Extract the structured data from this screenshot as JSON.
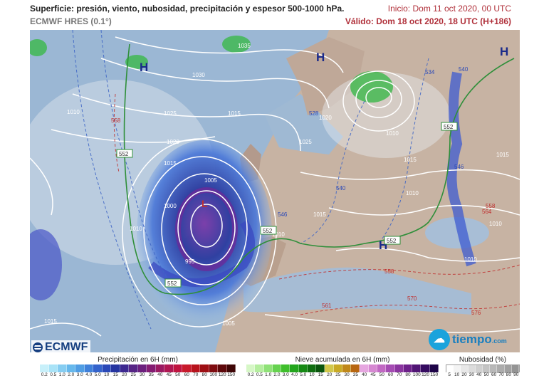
{
  "header": {
    "title": "Superficie: presión, viento, nubosidad, precipitación y espesor 500-1000 hPa.",
    "model": "ECMWF HRES (0.1°)",
    "init": "Inicio: Dom 11 oct 2020, 00 UTC",
    "valid": "Válido: Dom 18 oct 2020, 18 UTC (H+186)"
  },
  "map": {
    "high_label": "H",
    "low_label": "L",
    "isobar_labels": [
      "1035",
      "1030",
      "1025",
      "1020",
      "1015",
      "1010",
      "1005",
      "1000",
      "995",
      "1010",
      "1015",
      "1020",
      "1025",
      "1010",
      "1015",
      "1010",
      "1015",
      "1010",
      "1015",
      "1005",
      "1010",
      "1015",
      "1010"
    ],
    "thickness_labels": [
      "552",
      "552",
      "552",
      "552",
      "552",
      "552",
      "558",
      "558",
      "546",
      "540",
      "540",
      "534",
      "528",
      "546",
      "540",
      "558",
      "564",
      "570",
      "576",
      "561",
      "570",
      "540",
      "546",
      "534",
      "558"
    ],
    "colors": {
      "land": "#c7b3a3",
      "sea": "#9bb7d4",
      "rain": "#3d6fd6",
      "snow": "#3bb84a",
      "isobar": "#ffffff",
      "thickness_552": "#2f8f3a"
    }
  },
  "logos": {
    "ecmwf": "ECMWF",
    "tiempo_word": "tiempo",
    "tiempo_suffix": ".com"
  },
  "legends": {
    "precip": {
      "title": "Precipitación en 6H (mm)",
      "ticks": [
        "0.2",
        "0.5",
        "1.0",
        "2.0",
        "3.0",
        "4.0",
        "5.0",
        "10",
        "15",
        "20",
        "25",
        "30",
        "35",
        "40",
        "45",
        "50",
        "60",
        "70",
        "80",
        "100",
        "120",
        "150"
      ],
      "colors": [
        "#c8f0fa",
        "#a9e3f7",
        "#86cdf1",
        "#66b8ec",
        "#4f9de4",
        "#3f80da",
        "#3463cc",
        "#2a48b8",
        "#2534a0",
        "#3d2890",
        "#562485",
        "#6c1f7d",
        "#851c72",
        "#9b1a62",
        "#b01752",
        "#c01440",
        "#c81a2c",
        "#b8131d",
        "#9e0f14",
        "#7f0c10",
        "#5e080b",
        "#3e0506"
      ]
    },
    "snow": {
      "title": "Nieve acumulada en 6H (mm)",
      "ticks": [
        "0.2",
        "0.5",
        "1.0",
        "2.0",
        "3.0",
        "4.0",
        "5.0",
        "10",
        "15",
        "20",
        "25",
        "30",
        "35",
        "40",
        "45",
        "50",
        "60",
        "70",
        "80",
        "100",
        "120",
        "150"
      ],
      "colors": [
        "#d6f7c6",
        "#b5ee9f",
        "#8fe277",
        "#66d24f",
        "#3fbf2c",
        "#22a51c",
        "#168a14",
        "#0f6e10",
        "#0a550d",
        "#d2c84b",
        "#c9aa25",
        "#c0881a",
        "#b86610",
        "#e6a6e0",
        "#d688d2",
        "#c168c3",
        "#a54bb3",
        "#8a349f",
        "#6d208a",
        "#511575",
        "#350b60",
        "#1e0448"
      ]
    },
    "cloud": {
      "title": "Nubosidad (%)",
      "ticks": [
        "5",
        "10",
        "20",
        "30",
        "40",
        "50",
        "60",
        "70",
        "80",
        "90"
      ],
      "colors": [
        "#ffffff",
        "#f4f4f4",
        "#e8e8e8",
        "#dcdcdc",
        "#d0d0d0",
        "#c4c4c4",
        "#b8b8b8",
        "#acacac",
        "#a0a0a0",
        "#949494"
      ]
    }
  }
}
